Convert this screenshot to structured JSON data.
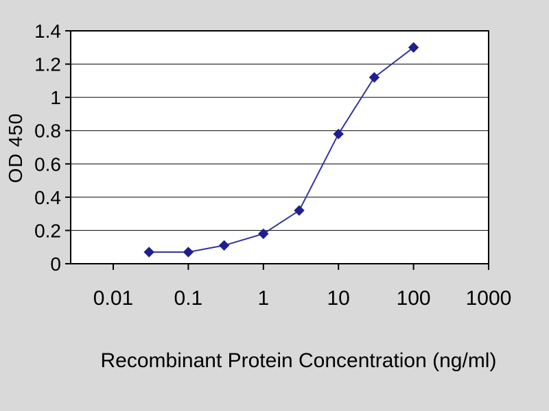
{
  "chart_data": {
    "type": "line",
    "title": "",
    "xlabel": "Recombinant Protein Concentration (ng/ml)",
    "ylabel": "OD 450",
    "x_scale": "log",
    "x": [
      0.03,
      0.1,
      0.3,
      1,
      3,
      10,
      30,
      100
    ],
    "y": [
      0.07,
      0.07,
      0.11,
      0.18,
      0.32,
      0.78,
      1.12,
      1.3
    ],
    "x_ticks": [
      0.01,
      0.1,
      1,
      10,
      100,
      1000
    ],
    "x_tick_labels": [
      "0.01",
      "0.1",
      "1",
      "10",
      "100",
      "1000"
    ],
    "y_ticks": [
      0,
      0.2,
      0.4,
      0.6,
      0.8,
      1.0,
      1.2,
      1.4
    ],
    "y_tick_labels": [
      "0",
      "0.2",
      "0.4",
      "0.6",
      "0.8",
      "1",
      "1.2",
      "1.4"
    ],
    "xlim_log": [
      0.01,
      1000
    ],
    "ylim": [
      0,
      1.4
    ],
    "grid": "horizontal",
    "legend": "none",
    "marker": "diamond",
    "colors": {
      "line": "#3333a0",
      "marker": "#1f1f8f",
      "background": "#d9d9d9",
      "plot_background": "#ffffff",
      "grid": "#000000",
      "text": "#000000"
    }
  }
}
